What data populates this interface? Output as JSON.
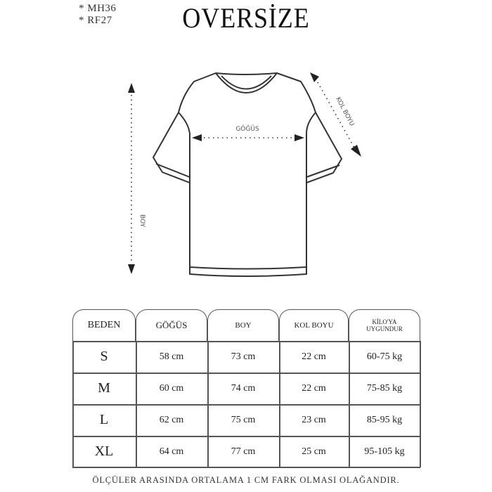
{
  "codes": [
    "* MH36",
    "* RF27"
  ],
  "title": "OVERSİZE",
  "diagram": {
    "chest_label": "GÖĞÜS",
    "sleeve_label": "KOL BOYU",
    "length_label": "BOY"
  },
  "table": {
    "headers": [
      "BEDEN",
      "GÖĞÜS",
      "BOY",
      "KOL BOYU",
      "KİLO'YA UYGUNDUR"
    ],
    "rows": [
      [
        "S",
        "58 cm",
        "73 cm",
        "22  cm",
        "60-75 kg"
      ],
      [
        "M",
        "60 cm",
        "74 cm",
        "22 cm",
        "75-85 kg"
      ],
      [
        "L",
        "62 cm",
        "75 cm",
        "23 cm",
        "85-95 kg"
      ],
      [
        "XL",
        "64 cm",
        "77 cm",
        "25 cm",
        "95-105 kg"
      ]
    ]
  },
  "footer": "ÖLÇÜLER ARASINDA ORTALAMA 1 CM FARK OLMASI OLAĞANDIR."
}
